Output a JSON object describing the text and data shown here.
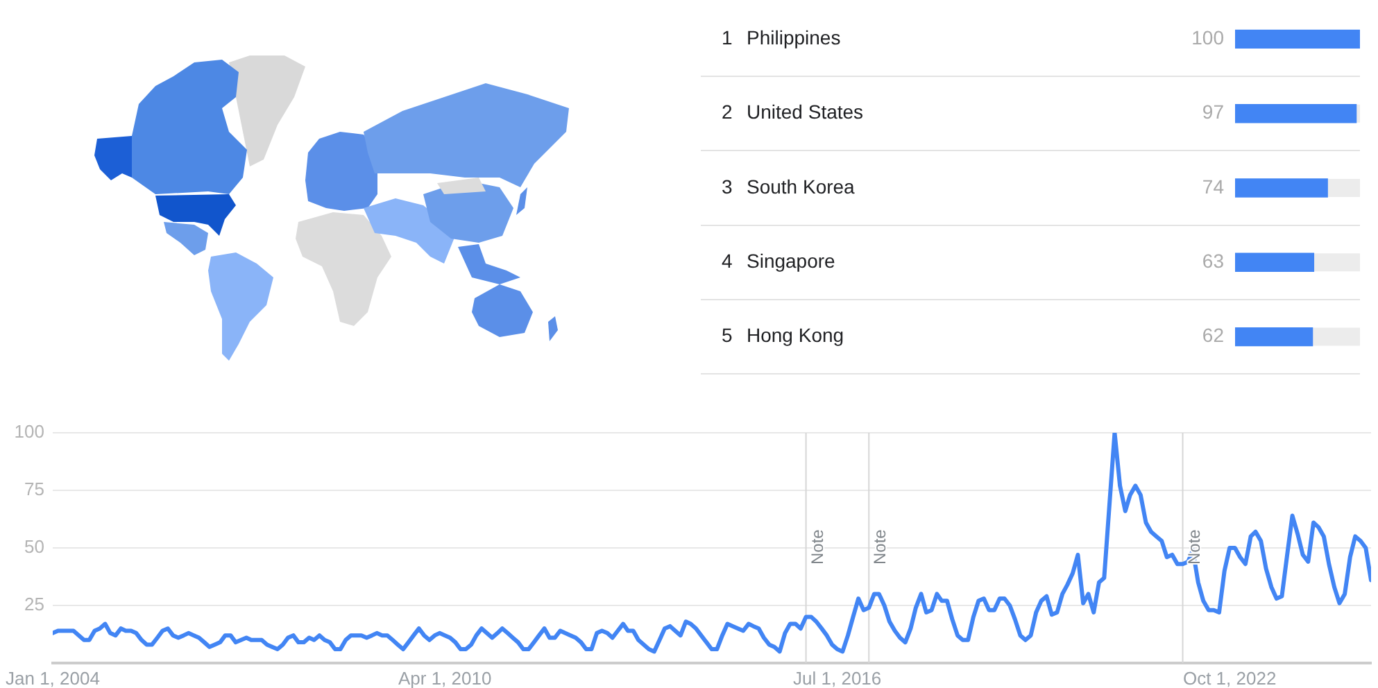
{
  "chart_data": [
    {
      "type": "bar",
      "orientation": "horizontal",
      "categories": [
        "Philippines",
        "United States",
        "South Korea",
        "Singapore",
        "Hong Kong"
      ],
      "values": [
        100,
        97,
        74,
        63,
        62
      ],
      "color": "#4285f4",
      "xlim": [
        0,
        100
      ],
      "data_labels": true,
      "grid": "y",
      "annotations": [
        "1",
        "2",
        "3",
        "4",
        "5"
      ]
    },
    {
      "type": "line",
      "color": "#4285f4",
      "xlim": [
        "2004-01",
        "2025-01"
      ],
      "ylim": [
        0,
        100
      ],
      "xticks": [
        {
          "value": "2004-01-01",
          "label": "Jan 1, 2004"
        },
        {
          "value": "2010-04-01",
          "label": "Apr 1, 2010"
        },
        {
          "value": "2016-07-01",
          "label": "Jul 1, 2016"
        },
        {
          "value": "2022-10-01",
          "label": "Oct 1, 2022"
        }
      ],
      "yticks": [
        25,
        50,
        75,
        100
      ],
      "grid": "y",
      "ref_lines": [
        {
          "axis": "x",
          "value": "2016-01",
          "label": "Note"
        },
        {
          "axis": "x",
          "value": "2017-01",
          "label": "Note"
        },
        {
          "axis": "x",
          "value": "2022-01",
          "label": "Note"
        }
      ],
      "x": [
        "2004-01",
        "2004-02",
        "2004-03",
        "2004-04",
        "2004-05",
        "2004-06",
        "2004-07",
        "2004-08",
        "2004-09",
        "2004-10",
        "2004-11",
        "2004-12",
        "2005-01",
        "2005-02",
        "2005-03",
        "2005-04",
        "2005-05",
        "2005-06",
        "2005-07",
        "2005-08",
        "2005-09",
        "2005-10",
        "2005-11",
        "2005-12",
        "2006-01",
        "2006-02",
        "2006-03",
        "2006-04",
        "2006-05",
        "2006-06",
        "2006-07",
        "2006-08",
        "2006-09",
        "2006-10",
        "2006-11",
        "2006-12",
        "2007-01",
        "2007-02",
        "2007-03",
        "2007-04",
        "2007-05",
        "2007-06",
        "2007-07",
        "2007-08",
        "2007-09",
        "2007-10",
        "2007-11",
        "2007-12",
        "2008-01",
        "2008-02",
        "2008-03",
        "2008-04",
        "2008-05",
        "2008-06",
        "2008-07",
        "2008-08",
        "2008-09",
        "2008-10",
        "2008-11",
        "2008-12",
        "2009-01",
        "2009-02",
        "2009-03",
        "2009-04",
        "2009-05",
        "2009-06",
        "2009-07",
        "2009-08",
        "2009-09",
        "2009-10",
        "2009-11",
        "2009-12",
        "2010-01",
        "2010-02",
        "2010-03",
        "2010-04",
        "2010-05",
        "2010-06",
        "2010-07",
        "2010-08",
        "2010-09",
        "2010-10",
        "2010-11",
        "2010-12",
        "2011-01",
        "2011-02",
        "2011-03",
        "2011-04",
        "2011-05",
        "2011-06",
        "2011-07",
        "2011-08",
        "2011-09",
        "2011-10",
        "2011-11",
        "2011-12",
        "2012-01",
        "2012-02",
        "2012-03",
        "2012-04",
        "2012-05",
        "2012-06",
        "2012-07",
        "2012-08",
        "2012-09",
        "2012-10",
        "2012-11",
        "2012-12",
        "2013-01",
        "2013-02",
        "2013-03",
        "2013-04",
        "2013-05",
        "2013-06",
        "2013-07",
        "2013-08",
        "2013-09",
        "2013-10",
        "2013-11",
        "2013-12",
        "2014-01",
        "2014-02",
        "2014-03",
        "2014-04",
        "2014-05",
        "2014-06",
        "2014-07",
        "2014-08",
        "2014-09",
        "2014-10",
        "2014-11",
        "2014-12",
        "2015-01",
        "2015-02",
        "2015-03",
        "2015-04",
        "2015-05",
        "2015-06",
        "2015-07",
        "2015-08",
        "2015-09",
        "2015-10",
        "2015-11",
        "2015-12",
        "2016-01",
        "2016-02",
        "2016-03",
        "2016-04",
        "2016-05",
        "2016-06",
        "2016-07",
        "2016-08",
        "2016-09",
        "2016-10",
        "2016-11",
        "2016-12",
        "2017-01",
        "2017-02",
        "2017-03",
        "2017-04",
        "2017-05",
        "2017-06",
        "2017-07",
        "2017-08",
        "2017-09",
        "2017-10",
        "2017-11",
        "2017-12",
        "2018-01",
        "2018-02",
        "2018-03",
        "2018-04",
        "2018-05",
        "2018-06",
        "2018-07",
        "2018-08",
        "2018-09",
        "2018-10",
        "2018-11",
        "2018-12",
        "2019-01",
        "2019-02",
        "2019-03",
        "2019-04",
        "2019-05",
        "2019-06",
        "2019-07",
        "2019-08",
        "2019-09",
        "2019-10",
        "2019-11",
        "2019-12",
        "2020-01",
        "2020-02",
        "2020-03",
        "2020-04",
        "2020-05",
        "2020-06",
        "2020-07",
        "2020-08",
        "2020-09",
        "2020-10",
        "2020-11",
        "2020-12",
        "2021-01",
        "2021-02",
        "2021-03",
        "2021-04",
        "2021-05",
        "2021-06",
        "2021-07",
        "2021-08",
        "2021-09",
        "2021-10",
        "2021-11",
        "2021-12",
        "2022-01",
        "2022-02",
        "2022-03",
        "2022-04",
        "2022-05",
        "2022-06",
        "2022-07",
        "2022-08",
        "2022-09",
        "2022-10",
        "2022-11",
        "2022-12",
        "2023-01",
        "2023-02",
        "2023-03",
        "2023-04",
        "2023-05",
        "2023-06",
        "2023-07",
        "2023-08",
        "2023-09",
        "2023-10",
        "2023-11",
        "2023-12",
        "2024-01",
        "2024-02",
        "2024-03",
        "2024-04",
        "2024-05",
        "2024-06",
        "2024-07",
        "2024-08",
        "2024-09",
        "2024-10",
        "2024-11",
        "2024-12",
        "2025-01"
      ],
      "values": [
        13,
        14,
        14,
        14,
        14,
        12,
        10,
        10,
        14,
        15,
        17,
        13,
        12,
        15,
        14,
        14,
        13,
        10,
        8,
        8,
        11,
        14,
        15,
        12,
        11,
        12,
        13,
        12,
        11,
        9,
        7,
        8,
        9,
        12,
        12,
        9,
        10,
        11,
        10,
        10,
        10,
        8,
        7,
        6,
        8,
        11,
        12,
        9,
        9,
        11,
        10,
        12,
        10,
        9,
        6,
        6,
        10,
        12,
        12,
        12,
        11,
        12,
        13,
        12,
        12,
        10,
        8,
        6,
        9,
        12,
        15,
        12,
        10,
        12,
        13,
        12,
        11,
        9,
        6,
        6,
        8,
        12,
        15,
        13,
        11,
        13,
        15,
        13,
        11,
        9,
        6,
        6,
        9,
        12,
        15,
        11,
        11,
        14,
        13,
        12,
        11,
        9,
        6,
        6,
        13,
        14,
        13,
        11,
        14,
        17,
        14,
        14,
        10,
        8,
        6,
        5,
        10,
        15,
        16,
        14,
        12,
        18,
        17,
        15,
        12,
        9,
        6,
        6,
        12,
        17,
        16,
        15,
        14,
        17,
        16,
        15,
        11,
        8,
        7,
        5,
        13,
        17,
        17,
        15,
        20,
        20,
        18,
        15,
        12,
        8,
        6,
        5,
        12,
        20,
        28,
        23,
        24,
        30,
        30,
        25,
        18,
        14,
        11,
        9,
        15,
        24,
        30,
        22,
        23,
        30,
        27,
        27,
        19,
        12,
        10,
        10,
        20,
        27,
        28,
        23,
        23,
        28,
        28,
        25,
        19,
        12,
        10,
        12,
        22,
        27,
        29,
        21,
        22,
        30,
        34,
        39,
        47,
        26,
        30,
        22,
        35,
        37,
        69,
        100,
        77,
        66,
        73,
        77,
        73,
        61,
        57,
        55,
        53,
        46,
        47,
        43,
        43,
        44,
        49,
        35,
        27,
        23,
        23,
        22,
        40,
        50,
        50,
        46,
        43,
        55,
        57,
        53,
        41,
        33,
        28,
        29,
        47,
        64,
        56,
        47,
        44,
        61,
        59,
        55,
        43,
        33,
        26,
        30,
        46,
        55,
        53,
        50,
        36
      ]
    }
  ]
}
